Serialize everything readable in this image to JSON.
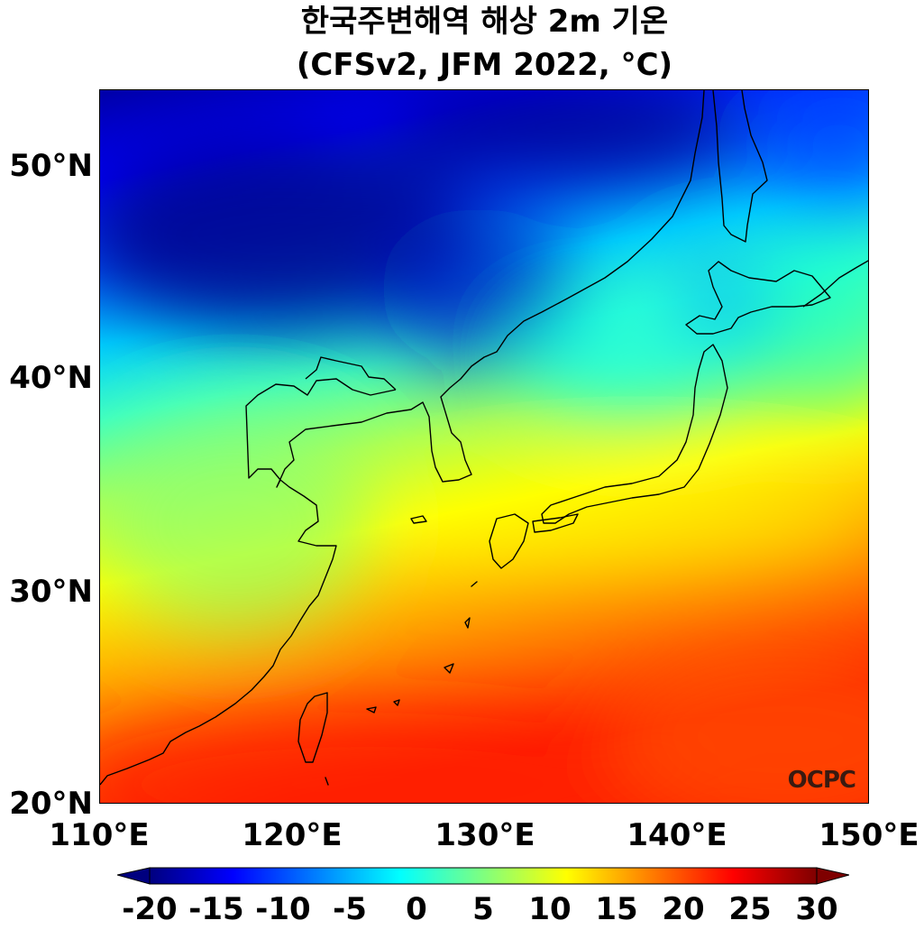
{
  "title": {
    "line1": "한국주변해역 해상 2m 기온",
    "line2": "(CFSv2, JFM 2022, °C)"
  },
  "axes": {
    "lat_labels": [
      "50°N",
      "40°N",
      "30°N",
      "20°N"
    ],
    "lon_labels": [
      "110°E",
      "120°E",
      "130°E",
      "140°E",
      "150°E"
    ],
    "lat_range": [
      20,
      53.5
    ],
    "lon_range": [
      110,
      150
    ]
  },
  "watermark": "OCPC",
  "colorbar": {
    "ticks": [
      "-20",
      "-15",
      "-10",
      "-5",
      "0",
      "5",
      "10",
      "15",
      "20",
      "25",
      "30"
    ],
    "range": [
      -20,
      30
    ],
    "extend": "both",
    "colormap": "jet",
    "colors": [
      "#00007f",
      "#0000ff",
      "#007fff",
      "#00ffff",
      "#7fff7f",
      "#ffff00",
      "#ff7f00",
      "#ff0000",
      "#7f0000"
    ]
  }
}
